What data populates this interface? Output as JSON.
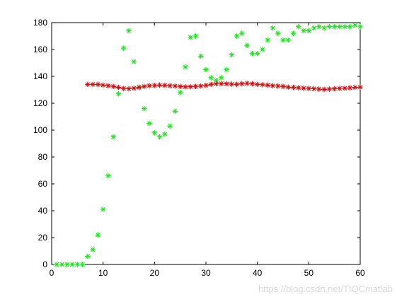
{
  "chart_data": {
    "type": "scatter",
    "xlim": [
      0,
      60
    ],
    "ylim": [
      0,
      180
    ],
    "xticks": [
      0,
      10,
      20,
      30,
      40,
      50,
      60
    ],
    "yticks": [
      0,
      20,
      40,
      60,
      80,
      100,
      120,
      140,
      160,
      180
    ],
    "grid": false,
    "series": [
      {
        "color": "#1ee61e",
        "marker": "asterisk",
        "x": [
          1,
          2,
          3,
          4,
          5,
          6,
          7,
          8,
          9,
          10,
          11,
          12,
          13,
          14,
          15,
          16,
          17,
          18,
          19,
          20,
          21,
          22,
          23,
          24,
          25,
          26,
          27,
          28,
          29,
          30,
          31,
          32,
          33,
          34,
          35,
          36,
          37,
          38,
          39,
          40,
          41,
          42,
          43,
          44,
          45,
          46,
          47,
          48,
          49,
          50,
          51,
          52,
          53,
          54,
          55,
          56,
          57,
          58,
          59,
          60
        ],
        "y": [
          0,
          0,
          0,
          0,
          0,
          0,
          6,
          11,
          22,
          41,
          66,
          95,
          127,
          161,
          174,
          151,
          132,
          116,
          105,
          98,
          95,
          97,
          103,
          114,
          128,
          147,
          169,
          170,
          155,
          145,
          139,
          137,
          139,
          145,
          156,
          170,
          172,
          163,
          157,
          157,
          160,
          167,
          176,
          172,
          167,
          167,
          172,
          177,
          174,
          174,
          176,
          177,
          176,
          177,
          177,
          177,
          177,
          177,
          178,
          177
        ]
      },
      {
        "color": "#d01010",
        "marker": "asterisk",
        "connected": true,
        "x": [
          7,
          8,
          9,
          10,
          11,
          12,
          13,
          14,
          15,
          16,
          17,
          18,
          19,
          20,
          21,
          22,
          23,
          24,
          25,
          26,
          27,
          28,
          29,
          30,
          31,
          32,
          33,
          34,
          35,
          36,
          37,
          38,
          39,
          40,
          41,
          42,
          43,
          44,
          45,
          46,
          47,
          48,
          49,
          50,
          51,
          52,
          53,
          54,
          55,
          56,
          57,
          58,
          59,
          60
        ],
        "y": [
          134,
          134,
          134,
          133.5,
          133,
          132.5,
          131.8,
          131,
          130.8,
          131.2,
          131.8,
          132.5,
          133,
          133.2,
          133.5,
          133.3,
          133,
          132.8,
          132.5,
          132.2,
          132.3,
          132.5,
          132.8,
          133.3,
          134,
          134.5,
          134.6,
          134.5,
          134.2,
          134,
          134.5,
          134.8,
          134.5,
          134,
          133.8,
          133.5,
          133,
          132.8,
          132.5,
          132,
          131.8,
          131.5,
          131.2,
          131,
          130.8,
          130.5,
          130.3,
          130.5,
          130.8,
          131,
          131.2,
          131.5,
          131.8,
          132
        ]
      }
    ]
  },
  "watermark": "https://blog.csdn.net/TIQCmatlab"
}
